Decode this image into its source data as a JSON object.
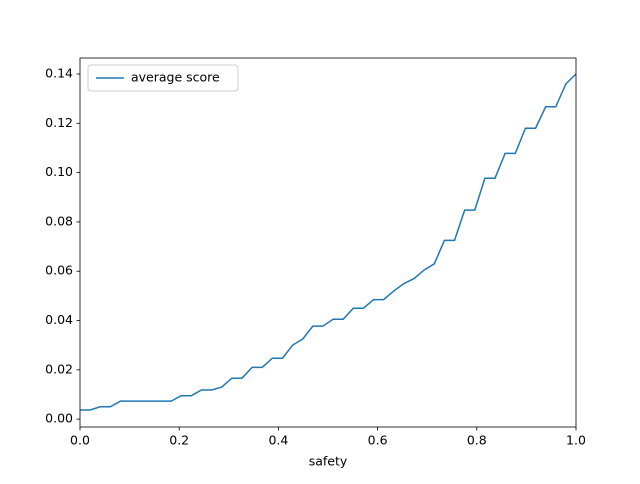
{
  "chart_data": {
    "type": "line",
    "xlabel": "safety",
    "x": [
      0,
      0.0204,
      0.0408,
      0.0612,
      0.0816,
      0.102,
      0.1224,
      0.1429,
      0.1633,
      0.1837,
      0.2041,
      0.2245,
      0.2449,
      0.2653,
      0.2857,
      0.3061,
      0.3265,
      0.3469,
      0.3673,
      0.3878,
      0.4082,
      0.4286,
      0.449,
      0.4694,
      0.4898,
      0.5102,
      0.5306,
      0.551,
      0.5714,
      0.5918,
      0.6122,
      0.6327,
      0.6531,
      0.6735,
      0.6939,
      0.7143,
      0.7347,
      0.7551,
      0.7755,
      0.7959,
      0.8163,
      0.8367,
      0.8571,
      0.8776,
      0.898,
      0.9184,
      0.9388,
      0.9592,
      0.9796,
      1
    ],
    "series": [
      {
        "name": "average score",
        "color": "#1f77b4",
        "values": [
          0.0037,
          0.0037,
          0.005,
          0.005,
          0.0073,
          0.0073,
          0.0073,
          0.0073,
          0.0073,
          0.0073,
          0.0095,
          0.0095,
          0.0118,
          0.0118,
          0.013,
          0.0166,
          0.0166,
          0.021,
          0.021,
          0.0247,
          0.0247,
          0.03,
          0.0325,
          0.0377,
          0.0377,
          0.0405,
          0.0405,
          0.045,
          0.045,
          0.0485,
          0.0485,
          0.052,
          0.055,
          0.057,
          0.0605,
          0.063,
          0.0725,
          0.0725,
          0.0848,
          0.0848,
          0.0977,
          0.0977,
          0.1078,
          0.1078,
          0.118,
          0.118,
          0.1267,
          0.1267,
          0.136,
          0.14
        ]
      }
    ],
    "xlim": [
      0,
      1
    ],
    "xticks": [
      {
        "value": 0,
        "label": "0.0"
      },
      0.2,
      0.4,
      0.6,
      0.8,
      {
        "value": 1,
        "label": "1.0"
      }
    ],
    "ylim": [
      -0.0032,
      0.1465
    ],
    "yticks": [
      {
        "value": 0,
        "label": "0.00"
      },
      {
        "value": 0.02,
        "label": "0.02"
      },
      {
        "value": 0.04,
        "label": "0.04"
      },
      {
        "value": 0.06,
        "label": "0.06"
      },
      {
        "value": 0.08,
        "label": "0.08"
      },
      {
        "value": 0.1,
        "label": "0.10"
      },
      {
        "value": 0.12,
        "label": "0.12"
      },
      {
        "value": 0.14,
        "label": "0.14"
      }
    ],
    "legend": "upper left",
    "grid": false
  }
}
